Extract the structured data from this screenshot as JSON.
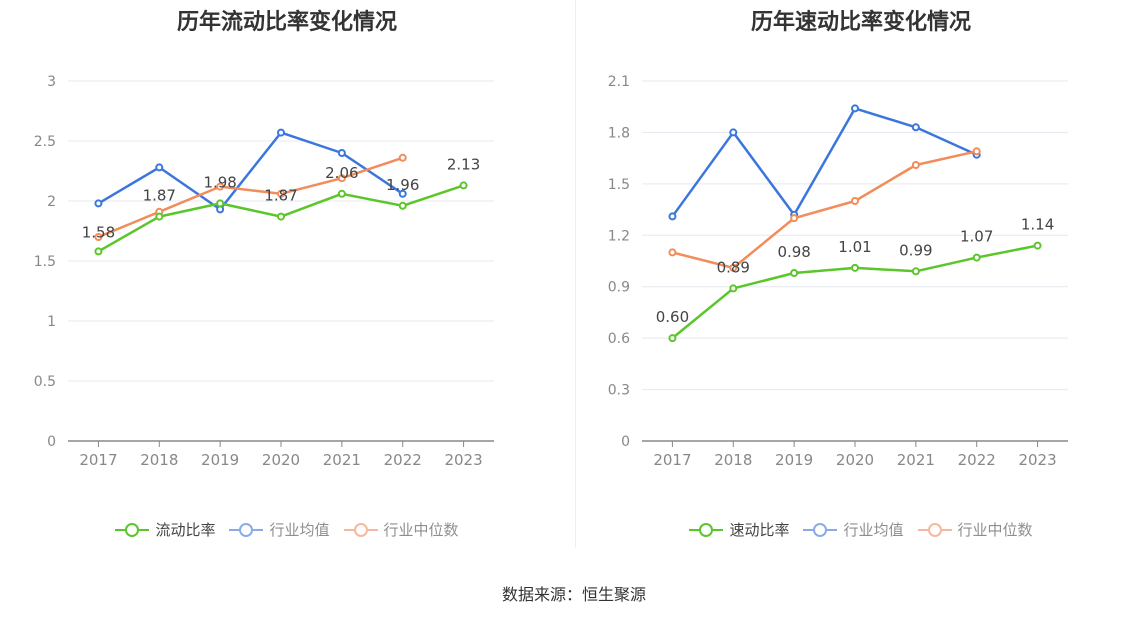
{
  "source": "数据来源：恒生聚源",
  "chart_data": [
    {
      "type": "line",
      "title": "历年流动比率变化情况",
      "x": [
        "2017",
        "2018",
        "2019",
        "2020",
        "2021",
        "2022",
        "2023"
      ],
      "ylim": [
        0,
        3
      ],
      "yticks": [
        "0",
        "0.5",
        "1",
        "1.5",
        "2",
        "2.5",
        "3"
      ],
      "grid": true,
      "legend_position": "bottom",
      "series": [
        {
          "name": "流动比率",
          "color": "#5ac62a",
          "values": [
            1.58,
            1.87,
            1.98,
            1.87,
            2.06,
            1.96,
            2.13
          ],
          "labels": [
            "1.58",
            "1.87",
            "1.98",
            "1.87",
            "2.06",
            "1.96",
            "2.13"
          ]
        },
        {
          "name": "行业均值",
          "color": "#3b76dc",
          "values": [
            1.98,
            2.28,
            1.93,
            2.57,
            2.4,
            2.06,
            null
          ]
        },
        {
          "name": "行业中位数",
          "color": "#f28c5a",
          "values": [
            1.7,
            1.91,
            2.12,
            2.06,
            2.19,
            2.36,
            null
          ]
        }
      ]
    },
    {
      "type": "line",
      "title": "历年速动比率变化情况",
      "x": [
        "2017",
        "2018",
        "2019",
        "2020",
        "2021",
        "2022",
        "2023"
      ],
      "ylim": [
        0,
        2.1
      ],
      "yticks": [
        "0",
        "0.3",
        "0.6",
        "0.9",
        "1.2",
        "1.5",
        "1.8",
        "2.1"
      ],
      "grid": true,
      "legend_position": "bottom",
      "series": [
        {
          "name": "速动比率",
          "color": "#5ac62a",
          "values": [
            0.6,
            0.89,
            0.98,
            1.01,
            0.99,
            1.07,
            1.14
          ],
          "labels": [
            "0.60",
            "0.89",
            "0.98",
            "1.01",
            "0.99",
            "1.07",
            "1.14"
          ]
        },
        {
          "name": "行业均值",
          "color": "#3b76dc",
          "values": [
            1.31,
            1.8,
            1.32,
            1.94,
            1.83,
            1.67,
            null
          ]
        },
        {
          "name": "行业中位数",
          "color": "#f28c5a",
          "values": [
            1.1,
            1.01,
            1.3,
            1.4,
            1.61,
            1.69,
            null
          ]
        }
      ]
    }
  ]
}
